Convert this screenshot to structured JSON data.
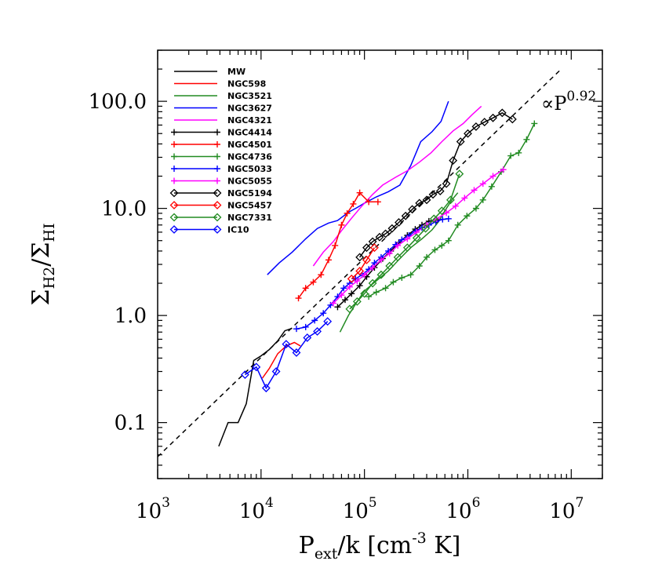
{
  "chart_data": {
    "type": "line",
    "xscale": "log",
    "yscale": "log",
    "xlim": [
      1000,
      20000000
    ],
    "ylim": [
      0.03,
      300
    ],
    "xticks": [
      {
        "value": 1000,
        "base": "10",
        "exp": "3"
      },
      {
        "value": 10000,
        "base": "10",
        "exp": "4"
      },
      {
        "value": 100000,
        "base": "10",
        "exp": "5"
      },
      {
        "value": 1000000,
        "base": "10",
        "exp": "6"
      },
      {
        "value": 10000000,
        "base": "10",
        "exp": "7"
      }
    ],
    "yticks": [
      {
        "value": 0.1,
        "label": "0.1"
      },
      {
        "value": 1,
        "label": "1.0"
      },
      {
        "value": 10,
        "label": "10.0"
      },
      {
        "value": 100,
        "label": "100.0"
      }
    ],
    "xlabel": {
      "main": "P",
      "sub": "ext",
      "rest": "/k [cm",
      "sup": "-3",
      "end": " K]"
    },
    "ylabel": {
      "sym1": "Σ",
      "sub1": "H2",
      "slash": "/",
      "sym2": "Σ",
      "sub2": "HI"
    },
    "fit": {
      "label_prefix": "∝P",
      "exponent": "0.92",
      "x": [
        1000,
        8000000
      ],
      "y": [
        0.048,
        200
      ]
    },
    "series": [
      {
        "name": "MW",
        "color": "#000000",
        "marker": "none",
        "x": [
          3900,
          4800,
          6000,
          7200,
          8500,
          10000,
          12000,
          14500,
          17000,
          20000
        ],
        "y": [
          0.06,
          0.1,
          0.1,
          0.15,
          0.38,
          0.42,
          0.48,
          0.58,
          0.72,
          0.76
        ]
      },
      {
        "name": "NGC598",
        "color": "#ff0000",
        "marker": "none",
        "x": [
          10300,
          12000,
          14500,
          17500,
          21000,
          24000
        ],
        "y": [
          0.26,
          0.32,
          0.44,
          0.52,
          0.56,
          0.52
        ]
      },
      {
        "name": "NGC3521",
        "color": "#228b22",
        "marker": "none",
        "x": [
          58000,
          70000,
          85000,
          100000,
          130000,
          170000,
          220000,
          280000,
          360000,
          450000,
          520000,
          600000,
          700000,
          800000
        ],
        "y": [
          0.7,
          1.0,
          1.35,
          1.7,
          2.1,
          2.6,
          3.4,
          4.3,
          5.2,
          6.3,
          7.5,
          9.5,
          12,
          14
        ]
      },
      {
        "name": "NGC3627",
        "color": "#0000ff",
        "marker": "none",
        "x": [
          11500,
          15000,
          20000,
          27000,
          35000,
          45000,
          55000,
          70000,
          85000,
          100000,
          130000,
          170000,
          220000,
          280000,
          350000,
          450000,
          550000,
          650000
        ],
        "y": [
          2.4,
          3.1,
          3.9,
          5.2,
          6.5,
          7.3,
          7.7,
          9.2,
          10.2,
          11.2,
          12.8,
          14.3,
          16.5,
          25,
          42,
          52,
          65,
          100
        ]
      },
      {
        "name": "NGC4321",
        "color": "#ff00ff",
        "marker": "none",
        "x": [
          32000,
          40000,
          50000,
          60000,
          75000,
          95000,
          120000,
          150000,
          200000,
          260000,
          340000,
          440000,
          560000,
          720000,
          900000,
          1100000,
          1350000
        ],
        "y": [
          2.9,
          3.9,
          4.9,
          6.2,
          8.1,
          10.6,
          13.5,
          16.5,
          19.5,
          22.5,
          27,
          33,
          42,
          53,
          62,
          75,
          90
        ]
      },
      {
        "name": "NGC4414",
        "color": "#000000",
        "marker": "plus",
        "x": [
          55000,
          65000,
          75000,
          90000,
          105000,
          125000,
          150000,
          180000,
          215000,
          260000,
          310000,
          360000,
          420000,
          500000
        ],
        "y": [
          1.2,
          1.4,
          1.6,
          1.9,
          2.3,
          2.8,
          3.4,
          4.0,
          4.8,
          5.6,
          6.4,
          7.0,
          7.6,
          7.8
        ]
      },
      {
        "name": "NGC4501",
        "color": "#ff0000",
        "marker": "plus",
        "x": [
          23000,
          27000,
          32000,
          38000,
          45000,
          52000,
          60000,
          68000,
          78000,
          90000,
          110000,
          135000
        ],
        "y": [
          1.45,
          1.8,
          2.05,
          2.4,
          3.3,
          4.5,
          7.0,
          9.0,
          11.0,
          14.0,
          11.5,
          11.5
        ]
      },
      {
        "name": "NGC4736",
        "color": "#228b22",
        "marker": "plus",
        "x": [
          110000,
          130000,
          160000,
          190000,
          230000,
          280000,
          340000,
          400000,
          480000,
          560000,
          650000,
          800000,
          980000,
          1200000,
          1400000,
          1700000,
          2100000,
          2600000,
          3100000,
          3700000,
          4400000
        ],
        "y": [
          1.5,
          1.65,
          1.8,
          2.05,
          2.25,
          2.4,
          2.9,
          3.5,
          4.1,
          4.5,
          5.0,
          7.0,
          8.5,
          10,
          12,
          16,
          22,
          31,
          33,
          44,
          62
        ]
      },
      {
        "name": "NGC5033",
        "color": "#0000ff",
        "marker": "plus",
        "x": [
          22000,
          27000,
          33000,
          40000,
          47000,
          55000,
          63000,
          72000,
          82000,
          95000,
          110000,
          125000,
          145000,
          170000,
          200000,
          230000,
          270000,
          310000,
          360000,
          420000,
          490000,
          570000,
          650000
        ],
        "y": [
          0.75,
          0.78,
          0.9,
          1.05,
          1.25,
          1.5,
          1.8,
          2.0,
          2.2,
          2.4,
          2.7,
          3.1,
          3.5,
          4.0,
          4.6,
          5.1,
          5.6,
          6.1,
          6.6,
          7.0,
          7.5,
          7.9,
          8.0
        ]
      },
      {
        "name": "NGC5055",
        "color": "#ff00ff",
        "marker": "plus",
        "x": [
          50000,
          60000,
          72000,
          85000,
          100000,
          120000,
          145000,
          175000,
          210000,
          260000,
          320000,
          400000,
          500000,
          620000,
          760000,
          930000,
          1150000,
          1400000,
          1750000,
          2200000
        ],
        "y": [
          1.3,
          1.55,
          1.85,
          2.1,
          2.4,
          2.8,
          3.3,
          3.8,
          4.5,
          5.2,
          6.0,
          7.0,
          8.0,
          9.1,
          10.5,
          12.5,
          14.8,
          17,
          20,
          23
        ]
      },
      {
        "name": "NGC5194",
        "color": "#000000",
        "marker": "diamond",
        "x": [
          90000,
          105000,
          120000,
          140000,
          160000,
          185000,
          215000,
          250000,
          290000,
          340000,
          400000,
          460000,
          540000,
          620000,
          720000,
          850000,
          1000000,
          1200000,
          1450000,
          1750000,
          2150000,
          2700000
        ],
        "y": [
          3.5,
          4.3,
          4.9,
          5.4,
          5.8,
          6.5,
          7.4,
          8.5,
          9.8,
          11.2,
          12,
          13.5,
          14.5,
          17,
          28,
          42,
          50,
          58,
          64,
          70,
          78,
          68
        ]
      },
      {
        "name": "NGC5457",
        "color": "#ff0000",
        "marker": "diamond",
        "x": [
          75000,
          90000,
          105000,
          125000
        ],
        "y": [
          2.2,
          2.6,
          3.3,
          4.3
        ]
      },
      {
        "name": "NGC7331",
        "color": "#228b22",
        "marker": "diamond",
        "x": [
          72000,
          85000,
          100000,
          120000,
          145000,
          175000,
          210000,
          260000,
          320000,
          390000,
          470000,
          560000,
          680000,
          830000
        ],
        "y": [
          1.15,
          1.35,
          1.6,
          2.0,
          2.4,
          2.9,
          3.5,
          4.3,
          5.3,
          6.5,
          8.0,
          9.5,
          12,
          21
        ]
      },
      {
        "name": "IC10",
        "color": "#0000ff",
        "marker": "diamond",
        "x": [
          7000,
          9000,
          11200,
          14000,
          17500,
          22000,
          28000,
          35000,
          44000
        ],
        "y": [
          0.28,
          0.33,
          0.21,
          0.3,
          0.54,
          0.45,
          0.62,
          0.71,
          0.88
        ]
      }
    ]
  }
}
